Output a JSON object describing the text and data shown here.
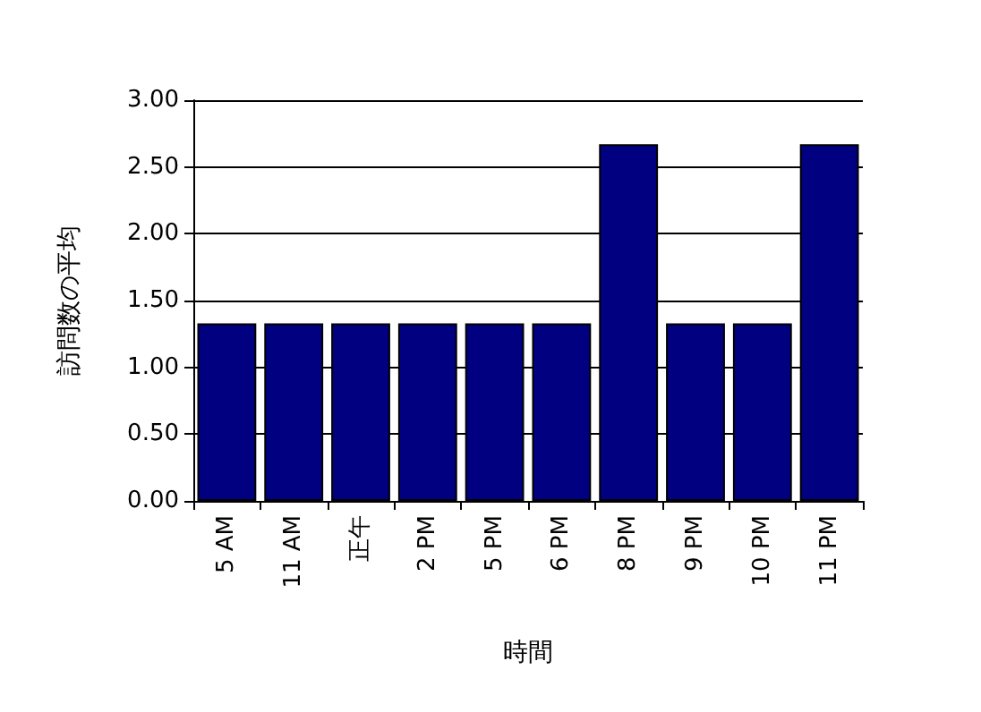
{
  "chart_data": {
    "type": "bar",
    "xlabel": "時間",
    "ylabel": "訪問数の平均",
    "categories": [
      "5 AM",
      "11 AM",
      "正午",
      "2 PM",
      "5 PM",
      "6 PM",
      "8 PM",
      "9 PM",
      "10 PM",
      "11 PM"
    ],
    "values": [
      1.33,
      1.33,
      1.33,
      1.33,
      1.33,
      1.33,
      2.67,
      1.33,
      1.33,
      2.67
    ],
    "color": "#000080",
    "ylim": [
      0,
      3
    ],
    "yticks": [
      {
        "value": 0,
        "label": "0.00"
      },
      {
        "value": 0.5,
        "label": "0.50"
      },
      {
        "value": 1,
        "label": "1.00"
      },
      {
        "value": 1.5,
        "label": "1.50"
      },
      {
        "value": 2,
        "label": "2.00"
      },
      {
        "value": 2.5,
        "label": "2.50"
      },
      {
        "value": 3,
        "label": "3.00"
      }
    ],
    "grid": "y"
  }
}
